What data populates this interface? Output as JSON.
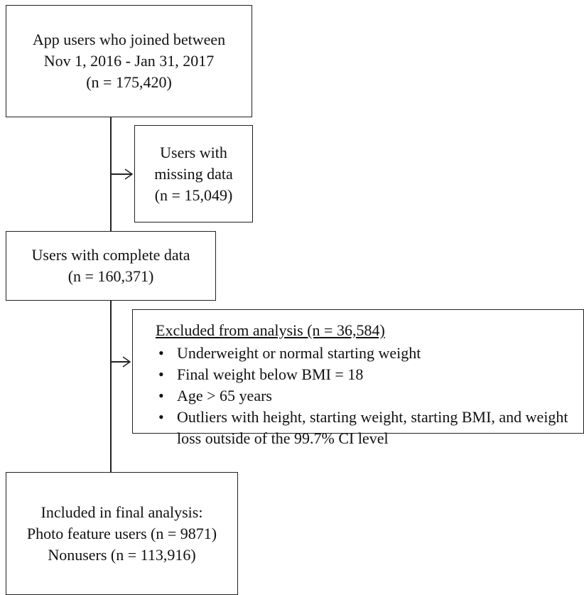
{
  "box_joined": {
    "lines": [
      "App users who joined between",
      "Nov 1, 2016 - Jan 31, 2017",
      "(n = 175,420)"
    ]
  },
  "box_missing": {
    "lines": [
      "Users with",
      "missing data",
      "(n = 15,049)"
    ]
  },
  "box_complete": {
    "lines": [
      "Users with complete data",
      "(n = 160,371)"
    ]
  },
  "box_excluded": {
    "title": "Excluded from analysis (n = 36,584)",
    "bullets": [
      "Underweight or normal starting weight",
      "Final weight below BMI = 18",
      "Age > 65 years",
      "Outliers with height, starting weight, starting BMI, and weight loss outside of the 99.7% CI level"
    ]
  },
  "box_included": {
    "lines": [
      "Included in final analysis:",
      "Photo feature users (n = 9871)",
      "Nonusers (n = 113,916)"
    ]
  }
}
